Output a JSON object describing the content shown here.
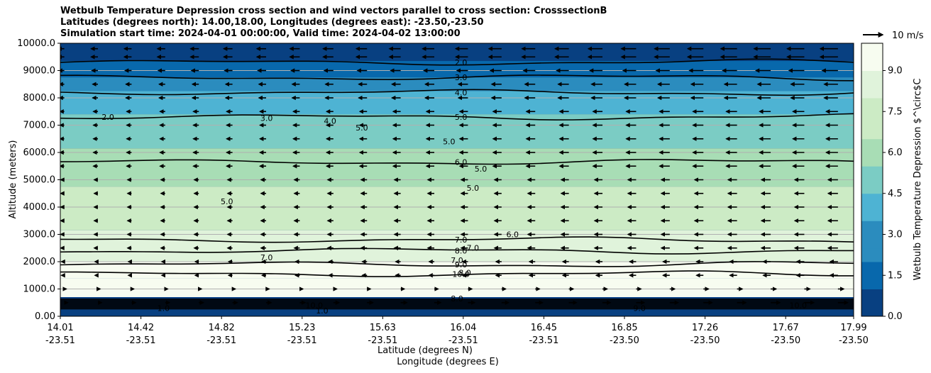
{
  "chart_data": {
    "type": "filled-contour",
    "title_lines": [
      "Wetbulb Temperature Depression cross section and wind vectors parallel to cross section: CrosssectionB",
      "Latitudes (degrees north): 14.00,18.00, Longitudes (degrees east): -23.50,-23.50",
      "Simulation start time: 2024-04-01 00:00:00, Valid time: 2024-04-02 13:00:00"
    ],
    "ylabel": "Altitude (meters)",
    "xlabel_lat": "Latitude (degrees N)",
    "xlabel_lon": "Longitude (degrees E)",
    "ylim": [
      0,
      10000
    ],
    "yticks": [
      "0.00",
      "1000.0",
      "2000.0",
      "3000.0",
      "4000.0",
      "5000.0",
      "6000.0",
      "7000.0",
      "8000.0",
      "9000.0",
      "10000.0"
    ],
    "ytick_values": [
      0,
      1000,
      2000,
      3000,
      4000,
      5000,
      6000,
      7000,
      8000,
      9000,
      10000
    ],
    "xticks_lat": [
      "14.01",
      "14.42",
      "14.82",
      "15.23",
      "15.63",
      "16.04",
      "16.45",
      "16.85",
      "17.26",
      "17.67",
      "17.99"
    ],
    "xticks_lon": [
      "-23.51",
      "-23.51",
      "-23.51",
      "-23.51",
      "-23.51",
      "-23.51",
      "-23.51",
      "-23.50",
      "-23.50",
      "-23.50",
      "-23.50"
    ],
    "xtick_fractions": [
      0,
      0.1016,
      0.2032,
      0.3048,
      0.4064,
      0.5079,
      0.6095,
      0.7111,
      0.8127,
      0.9143,
      1.0
    ],
    "colorbar": {
      "label": "Wetbulb Temperature Depression $^\\circ$C",
      "range": [
        0,
        10
      ],
      "ticks": [
        "0.0",
        "1.5",
        "3.0",
        "4.5",
        "6.0",
        "7.5",
        "9.0"
      ],
      "tick_values": [
        0,
        1.5,
        3.0,
        4.5,
        6.0,
        7.5,
        9.0
      ],
      "colors": [
        "#084081",
        "#0868ac",
        "#2b8cbe",
        "#4eb3d3",
        "#7bccc4",
        "#a8ddb5",
        "#ccebc5",
        "#e0f3db",
        "#f7fcf0"
      ]
    },
    "wind_key": {
      "label": "10 m/s",
      "speed": 10
    },
    "layers": [
      {
        "altitude": 9700,
        "value": 1.0
      },
      {
        "altitude": 9000,
        "value": 2.0
      },
      {
        "altitude": 8500,
        "value": 3.0
      },
      {
        "altitude": 8000,
        "value": 4.0
      },
      {
        "altitude": 6800,
        "value": 5.0
      },
      {
        "altitude": 5500,
        "value": 6.0
      },
      {
        "altitude": 4000,
        "value": 7.0
      },
      {
        "altitude": 2300,
        "value": 8.0
      },
      {
        "altitude": 1700,
        "value": 9.0
      },
      {
        "altitude": 1100,
        "value": 10.0
      },
      {
        "altitude": 300,
        "value": 1.0
      }
    ],
    "contour_levels": [
      {
        "label": "2.0",
        "alt_right": 9300
      },
      {
        "label": "3.0",
        "alt_right": 8750
      },
      {
        "label": "4.0",
        "alt_right": 8200
      },
      {
        "label": "5.0",
        "alt_right": 7300
      },
      {
        "label": "6.0",
        "alt_right": 5650
      },
      {
        "label": "7.0",
        "alt_right": 2800
      },
      {
        "label": "8.0",
        "alt_right": 2400
      },
      {
        "label": "9.0",
        "alt_right": 1900
      },
      {
        "label": "10.0",
        "alt_right": 1550
      }
    ],
    "inline_contour_labels": [
      "2.0",
      "3.0",
      "4.0",
      "5.0",
      "5.0",
      "5.0",
      "5.0",
      "5.0",
      "6.0",
      "7.0",
      "7.0",
      "7.0",
      "8.0",
      "8.0",
      "9.0",
      "10.0",
      "10.0",
      "1.0",
      "1.0"
    ],
    "wind_rows": [
      {
        "altitude": 9800,
        "u": -9
      },
      {
        "altitude": 9500,
        "u": -9
      },
      {
        "altitude": 9000,
        "u": -8
      },
      {
        "altitude": 8500,
        "u": -7
      },
      {
        "altitude": 8000,
        "u": -7
      },
      {
        "altitude": 7500,
        "u": -6
      },
      {
        "altitude": 7000,
        "u": -6
      },
      {
        "altitude": 6500,
        "u": -6
      },
      {
        "altitude": 6000,
        "u": -6
      },
      {
        "altitude": 5500,
        "u": -6
      },
      {
        "altitude": 5000,
        "u": -5
      },
      {
        "altitude": 4500,
        "u": -5
      },
      {
        "altitude": 4000,
        "u": -5
      },
      {
        "altitude": 3500,
        "u": -5
      },
      {
        "altitude": 3000,
        "u": -5
      },
      {
        "altitude": 2500,
        "u": -5
      },
      {
        "altitude": 2000,
        "u": -4
      },
      {
        "altitude": 1500,
        "u": -4
      },
      {
        "altitude": 1000,
        "u": 3
      },
      {
        "altitude": 500,
        "u": 5
      }
    ]
  }
}
